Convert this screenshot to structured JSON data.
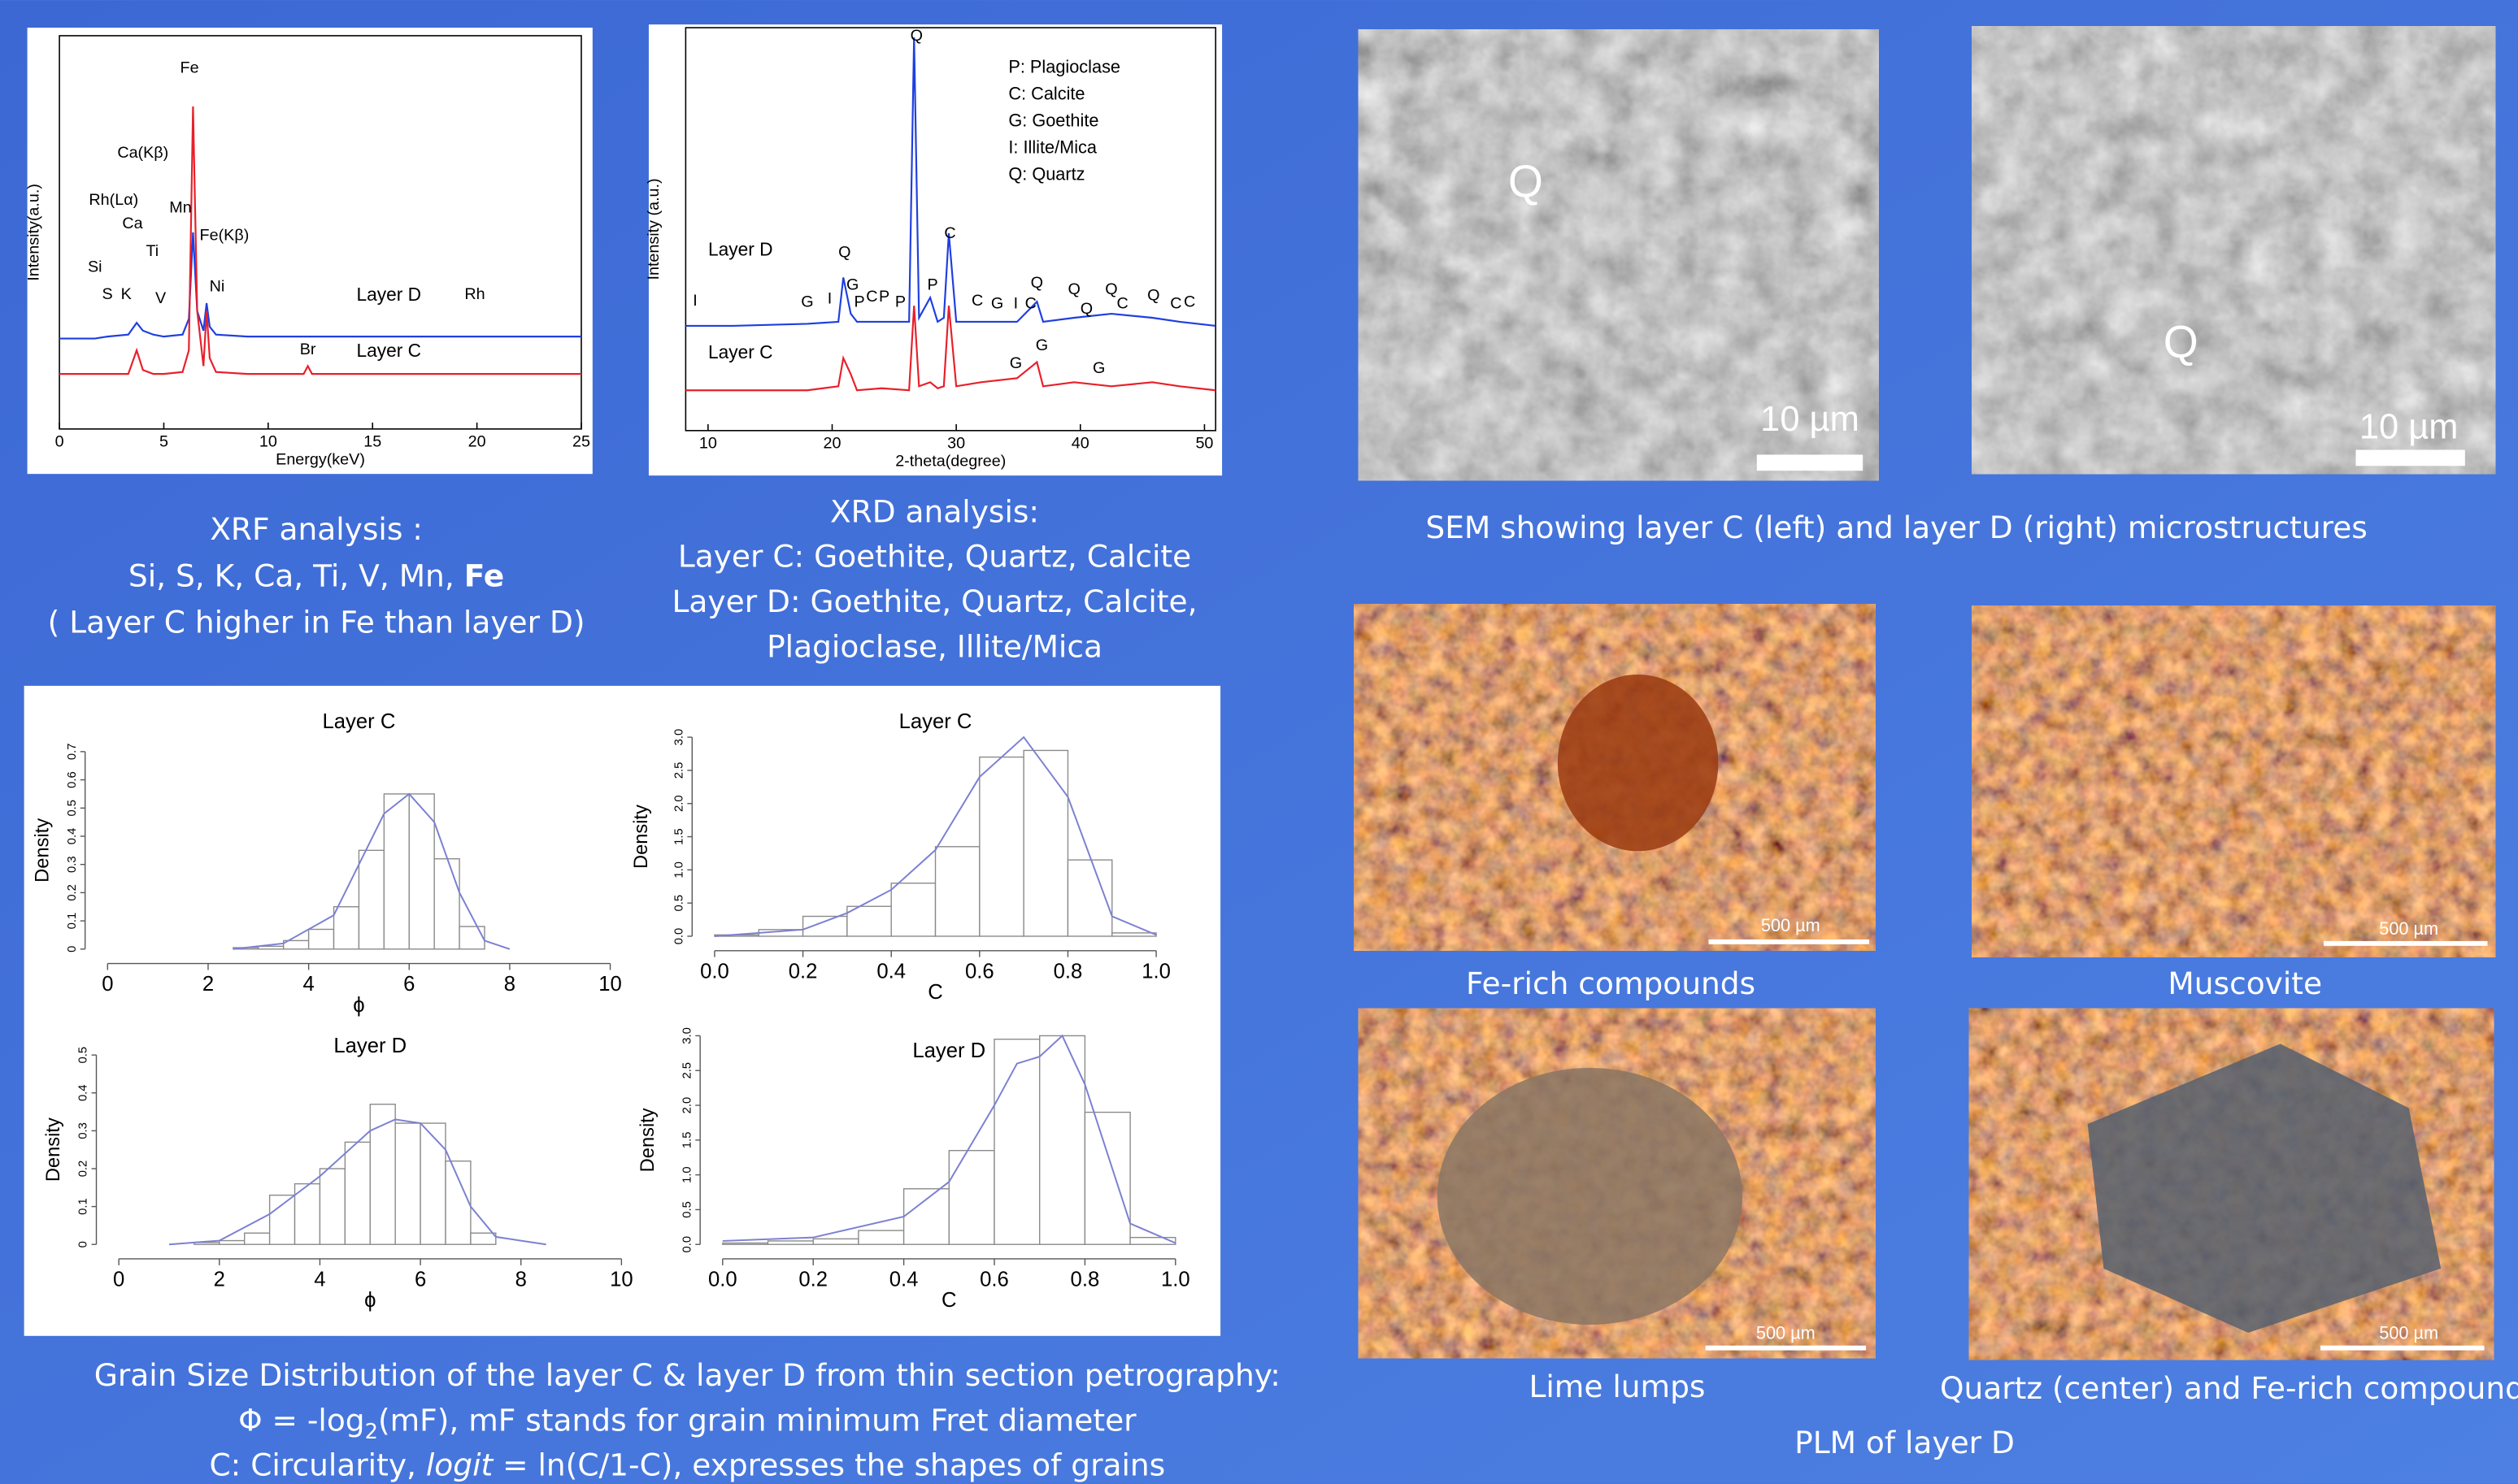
{
  "chart_data": [
    {
      "type": "line",
      "xlabel": "Energy(keV)",
      "ylabel": "Intensity(a.u.)",
      "box": true,
      "xlim": [
        0,
        25
      ],
      "xticks": [
        0,
        5,
        10,
        15,
        20,
        25
      ],
      "ylim": [
        0,
        100
      ],
      "x": [
        0,
        1.7,
        2.3,
        3.3,
        3.7,
        4.0,
        4.5,
        5.0,
        5.9,
        6.2,
        6.4,
        6.6,
        6.9,
        7.05,
        7.2,
        7.5,
        9.0,
        11.7,
        11.9,
        12.1,
        15.0,
        20.0,
        25.0
      ],
      "series": [
        {
          "name": "Layer D",
          "color": "#1f3fe0",
          "values": [
            23,
            23,
            23.5,
            24,
            27,
            25,
            24,
            23.5,
            24,
            28,
            50,
            30,
            25,
            32,
            26,
            24,
            23.5,
            23.5,
            23.5,
            23.5,
            23.5,
            23.5,
            23.5
          ]
        },
        {
          "name": "Layer C",
          "color": "#e8202a",
          "values": [
            14,
            14,
            14,
            14,
            20,
            15,
            14,
            14,
            14.5,
            20,
            82,
            30,
            16,
            30,
            18,
            14.5,
            14,
            14,
            16,
            14,
            14,
            14,
            14
          ]
        }
      ],
      "annotations": [
        {
          "text": "Fe",
          "x": 6.23,
          "y": 90.6
        },
        {
          "text": "Ca(Kβ)",
          "x": 4.0,
          "y": 69
        },
        {
          "text": "Rh(Lα)",
          "x": 2.6,
          "y": 57
        },
        {
          "text": "Ca",
          "x": 3.5,
          "y": 51
        },
        {
          "text": "Mn",
          "x": 5.8,
          "y": 55
        },
        {
          "text": "Ti",
          "x": 4.45,
          "y": 44
        },
        {
          "text": "Fe(Kβ)",
          "x": 7.9,
          "y": 48
        },
        {
          "text": "Si",
          "x": 1.7,
          "y": 40
        },
        {
          "text": "S",
          "x": 2.3,
          "y": 33
        },
        {
          "text": "K",
          "x": 3.2,
          "y": 33
        },
        {
          "text": "V",
          "x": 4.85,
          "y": 32
        },
        {
          "text": "Ni",
          "x": 7.55,
          "y": 35
        },
        {
          "text": "Rh",
          "x": 19.9,
          "y": 33
        },
        {
          "text": "Br",
          "x": 11.9,
          "y": 19
        }
      ]
    },
    {
      "type": "line",
      "xlabel": "2-theta(degree)",
      "ylabel": "Intensity (a.u.)",
      "box": true,
      "xlim": [
        8.2,
        50.9
      ],
      "xticks": [
        10,
        20,
        30,
        40,
        50
      ],
      "ylim": [
        0,
        100
      ],
      "x": [
        8.2,
        12,
        18,
        20.5,
        20.9,
        21.5,
        22,
        24,
        26.2,
        26.6,
        27,
        27.9,
        28.5,
        29.0,
        29.4,
        30,
        32,
        34.9,
        36.5,
        37,
        39.5,
        42.5,
        45.8,
        48,
        50.9
      ],
      "series": [
        {
          "name": "Layer D",
          "color": "#1f3fe0",
          "values": [
            26,
            26,
            26.5,
            27,
            38,
            29,
            27,
            27,
            27,
            97.6,
            28,
            33,
            27,
            28,
            49,
            27,
            27,
            27,
            32,
            27,
            28,
            29,
            28,
            27,
            26
          ]
        },
        {
          "name": "Layer C",
          "color": "#e8202a",
          "values": [
            10,
            10,
            10,
            11,
            18,
            14,
            10,
            10.5,
            10,
            31,
            11,
            12,
            10.5,
            11,
            31,
            11,
            12,
            13,
            17,
            11,
            12,
            11,
            12,
            11,
            10
          ]
        }
      ],
      "legend_text": [
        "P: Plagioclase",
        "C: Calcite",
        "G: Goethite",
        "I: Illite/Mica",
        "Q: Quartz"
      ],
      "annotations": [
        {
          "text": "I",
          "x": 8.96,
          "y": 31
        },
        {
          "text": "G",
          "x": 18.0,
          "y": 30.7
        },
        {
          "text": "I",
          "x": 19.8,
          "y": 31.5
        },
        {
          "text": "Q",
          "x": 21.0,
          "y": 43
        },
        {
          "text": "G",
          "x": 21.65,
          "y": 35
        },
        {
          "text": "P",
          "x": 22.2,
          "y": 30.7
        },
        {
          "text": "C",
          "x": 23.2,
          "y": 32
        },
        {
          "text": "P",
          "x": 24.2,
          "y": 32
        },
        {
          "text": "P",
          "x": 25.5,
          "y": 30.7
        },
        {
          "text": "Q",
          "x": 26.8,
          "y": 96.8
        },
        {
          "text": "P",
          "x": 28.1,
          "y": 35
        },
        {
          "text": "C",
          "x": 29.5,
          "y": 47.8
        },
        {
          "text": "C",
          "x": 31.7,
          "y": 31
        },
        {
          "text": "G",
          "x": 33.3,
          "y": 30.3
        },
        {
          "text": "I",
          "x": 34.8,
          "y": 30.3
        },
        {
          "text": "C",
          "x": 36.0,
          "y": 30.3
        },
        {
          "text": "Q",
          "x": 36.5,
          "y": 35.5
        },
        {
          "text": "Q",
          "x": 39.5,
          "y": 33.9
        },
        {
          "text": "Q",
          "x": 40.5,
          "y": 29
        },
        {
          "text": "Q",
          "x": 42.5,
          "y": 33.9
        },
        {
          "text": "C",
          "x": 43.4,
          "y": 30.3
        },
        {
          "text": "Q",
          "x": 45.9,
          "y": 32.3
        },
        {
          "text": "C",
          "x": 47.7,
          "y": 30.3
        },
        {
          "text": "C",
          "x": 48.8,
          "y": 30.7
        },
        {
          "text": "G",
          "x": 34.8,
          "y": 15.5
        },
        {
          "text": "G",
          "x": 36.9,
          "y": 19.9
        },
        {
          "text": "G",
          "x": 41.5,
          "y": 14.3
        }
      ]
    },
    {
      "type": "histogram",
      "title": "Layer C",
      "xlabel": "ϕ",
      "ylabel": "Density",
      "xlim": [
        0,
        10
      ],
      "xticks": [
        0,
        2,
        4,
        6,
        8,
        10
      ],
      "ylim": [
        0,
        0.7
      ],
      "yticks": [
        {
          "value": 0,
          "label": "0"
        },
        0.1,
        0.2,
        0.3,
        0.4,
        0.5,
        0.6,
        0.7
      ],
      "bins": [
        2.5,
        3,
        3.5,
        4,
        4.5,
        5,
        5.5,
        6,
        6.5,
        7,
        7.5
      ],
      "values": [
        0.005,
        0.01,
        0.03,
        0.07,
        0.15,
        0.35,
        0.55,
        0.55,
        0.32,
        0.08
      ],
      "density": {
        "x": [
          2.5,
          3.5,
          4.5,
          5.0,
          5.5,
          6,
          6.5,
          7,
          7.5,
          8
        ],
        "y": [
          0,
          0.02,
          0.12,
          0.3,
          0.48,
          0.55,
          0.45,
          0.2,
          0.03,
          0
        ]
      }
    },
    {
      "type": "histogram",
      "title": "Layer C",
      "xlabel": "C",
      "ylabel": "Density",
      "xlim": [
        0,
        1
      ],
      "xticks": [
        {
          "value": 0,
          "label": "0.0"
        },
        0.2,
        0.4,
        0.6,
        0.8,
        {
          "value": 1,
          "label": "1.0"
        }
      ],
      "ylim": [
        0,
        3
      ],
      "yticks": [
        {
          "value": 0,
          "label": "0.0"
        },
        0.5,
        {
          "value": 1,
          "label": "1.0"
        },
        1.5,
        {
          "value": 2,
          "label": "2.0"
        },
        2.5,
        {
          "value": 3,
          "label": "3.0"
        }
      ],
      "bins": [
        0,
        0.1,
        0.2,
        0.3,
        0.4,
        0.5,
        0.6,
        0.7,
        0.8,
        0.9,
        1.0
      ],
      "values": [
        0.02,
        0.1,
        0.3,
        0.45,
        0.8,
        1.35,
        2.7,
        2.8,
        1.15,
        0.05
      ],
      "density": {
        "x": [
          0,
          0.2,
          0.3,
          0.4,
          0.5,
          0.6,
          0.7,
          0.8,
          0.9,
          1.0
        ],
        "y": [
          0,
          0.1,
          0.35,
          0.7,
          1.3,
          2.4,
          3.0,
          2.1,
          0.3,
          0.02
        ]
      }
    },
    {
      "type": "histogram",
      "title": "Layer D",
      "xlabel": "ϕ",
      "ylabel": "Density",
      "xlim": [
        0,
        10
      ],
      "xticks": [
        0,
        2,
        4,
        6,
        8,
        10
      ],
      "ylim": [
        0,
        0.5
      ],
      "yticks": [
        {
          "value": 0,
          "label": "0"
        },
        0.1,
        0.2,
        0.3,
        0.4,
        0.5
      ],
      "bins": [
        1.5,
        2,
        2.5,
        3,
        3.5,
        4,
        4.5,
        5,
        5.5,
        6,
        6.5,
        7,
        7.5
      ],
      "values": [
        0.005,
        0.01,
        0.03,
        0.13,
        0.16,
        0.2,
        0.27,
        0.37,
        0.32,
        0.32,
        0.22,
        0.03
      ],
      "density": {
        "x": [
          1,
          2,
          3,
          4,
          5,
          5.5,
          6,
          6.5,
          7,
          7.5,
          8.5
        ],
        "y": [
          0,
          0.01,
          0.08,
          0.18,
          0.3,
          0.33,
          0.32,
          0.25,
          0.1,
          0.02,
          0
        ]
      }
    },
    {
      "type": "histogram",
      "title": "Layer D",
      "xlabel": "C",
      "ylabel": "Density",
      "xlim": [
        0,
        1
      ],
      "xticks": [
        {
          "value": 0,
          "label": "0.0"
        },
        0.2,
        0.4,
        0.6,
        0.8,
        {
          "value": 1,
          "label": "1.0"
        }
      ],
      "ylim": [
        0,
        3
      ],
      "yticks": [
        {
          "value": 0,
          "label": "0.0"
        },
        0.5,
        {
          "value": 1,
          "label": "1.0"
        },
        1.5,
        {
          "value": 2,
          "label": "2.0"
        },
        2.5,
        {
          "value": 3,
          "label": "3.0"
        }
      ],
      "bins": [
        0,
        0.1,
        0.2,
        0.3,
        0.4,
        0.5,
        0.6,
        0.7,
        0.8,
        0.9,
        1.0
      ],
      "values": [
        0.02,
        0.05,
        0.08,
        0.2,
        0.8,
        1.35,
        2.95,
        3.0,
        1.9,
        0.1
      ],
      "density": {
        "x": [
          0,
          0.2,
          0.4,
          0.5,
          0.6,
          0.65,
          0.7,
          0.75,
          0.8,
          0.9,
          1.0
        ],
        "y": [
          0.05,
          0.1,
          0.4,
          0.9,
          2.0,
          2.6,
          2.7,
          3.0,
          2.3,
          0.3,
          0.02
        ]
      }
    }
  ],
  "xrf_caption": [
    "XRF analysis :",
    "Si, S, K, Ca, Ti, V, Mn, ",
    "Fe",
    "( Layer C higher in Fe than layer D)"
  ],
  "xrd_caption": [
    "XRD analysis:",
    "Layer C: Goethite, Quartz, Calcite",
    "Layer D: Goethite, Quartz, Calcite,",
    "Plagioclase, Illite/Mica"
  ],
  "sem": {
    "labels": [
      "Q",
      "Q"
    ],
    "scale": [
      "10 µm",
      "10 µm"
    ],
    "caption": "SEM showing layer C (left) and layer D (right) microstructures"
  },
  "plm": {
    "captions": [
      "Fe-rich compounds",
      "Muscovite",
      "Lime lumps",
      "Quartz (center) and Fe-rich compounds"
    ],
    "scale": [
      "500 µm",
      "500 µm",
      "500 µm",
      "500 µm"
    ],
    "title": "PLM of layer D"
  },
  "grain_caption": {
    "line1": "Grain Size Distribution of the layer C & layer D from thin section petrography:",
    "line2": [
      "Φ = -log",
      "2",
      "(mF), mF stands for grain minimum Fret diameter"
    ],
    "line3": [
      "C: Circularity, ",
      "logit",
      " = ln(C/1-C), expresses the shapes of grains"
    ]
  }
}
